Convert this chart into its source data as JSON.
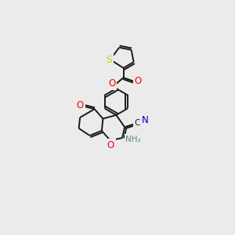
{
  "background_color": "#ebebeb",
  "bond_color": "#1a1a1a",
  "atom_colors": {
    "O": "#ff0000",
    "N": "#0000cd",
    "S": "#cccc00",
    "C": "#1a1a1a",
    "H": "#5a8a8a"
  },
  "figsize": [
    3.0,
    3.0
  ],
  "dpi": 100,
  "lw": 1.4,
  "fs": 7.5
}
